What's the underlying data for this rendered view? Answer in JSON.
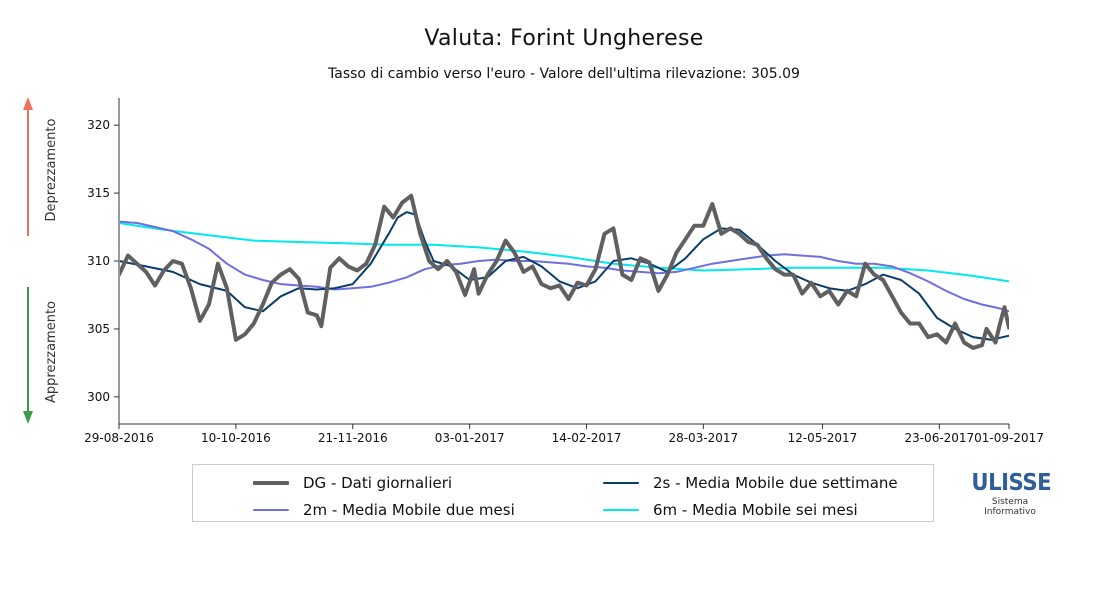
{
  "chart_data": {
    "type": "line",
    "title": "Valuta: Forint Ungherese",
    "subtitle": "Tasso di cambio verso l'euro - Valore dell'ultima rilevazione: 305.09",
    "y_ticks": [
      300,
      305,
      310,
      315,
      320
    ],
    "ylim": [
      298,
      322
    ],
    "x_ticks": [
      "29-08-2016",
      "10-10-2016",
      "21-11-2016",
      "03-01-2017",
      "14-02-2017",
      "28-03-2017",
      "12-05-2017",
      "23-06-2017",
      "01-09-2017"
    ],
    "side_labels": {
      "up": "Deprezzamento",
      "down": "Apprezzamento"
    },
    "colors": {
      "up_arrow": "#f07060",
      "down_arrow": "#3a9a4a"
    },
    "series": [
      {
        "key": "dg",
        "name": "DG - Dati giornalieri",
        "color": "#606060",
        "width": 4,
        "points": [
          [
            0,
            309.0
          ],
          [
            2,
            310.4
          ],
          [
            4,
            309.8
          ],
          [
            6,
            309.2
          ],
          [
            8,
            308.2
          ],
          [
            10,
            309.3
          ],
          [
            12,
            310.0
          ],
          [
            14,
            309.8
          ],
          [
            16,
            308.0
          ],
          [
            18,
            305.6
          ],
          [
            20,
            306.8
          ],
          [
            22,
            309.8
          ],
          [
            24,
            308.0
          ],
          [
            26,
            304.2
          ],
          [
            28,
            304.6
          ],
          [
            30,
            305.4
          ],
          [
            32,
            306.8
          ],
          [
            34,
            308.4
          ],
          [
            36,
            309.0
          ],
          [
            38,
            309.4
          ],
          [
            40,
            308.7
          ],
          [
            42,
            306.2
          ],
          [
            44,
            306.0
          ],
          [
            45,
            305.2
          ],
          [
            47,
            309.5
          ],
          [
            49,
            310.2
          ],
          [
            51,
            309.6
          ],
          [
            53,
            309.3
          ],
          [
            55,
            309.8
          ],
          [
            57,
            311.2
          ],
          [
            59,
            314.0
          ],
          [
            61,
            313.2
          ],
          [
            63,
            314.3
          ],
          [
            65,
            314.8
          ],
          [
            67,
            312.0
          ],
          [
            69,
            310.0
          ],
          [
            71,
            309.4
          ],
          [
            73,
            310.0
          ],
          [
            75,
            309.2
          ],
          [
            77,
            307.5
          ],
          [
            79,
            309.4
          ],
          [
            80,
            307.6
          ],
          [
            82,
            309.0
          ],
          [
            84,
            310.0
          ],
          [
            86,
            311.5
          ],
          [
            88,
            310.6
          ],
          [
            90,
            309.2
          ],
          [
            92,
            309.6
          ],
          [
            94,
            308.3
          ],
          [
            96,
            308.0
          ],
          [
            98,
            308.2
          ],
          [
            100,
            307.2
          ],
          [
            102,
            308.4
          ],
          [
            104,
            308.2
          ],
          [
            106,
            309.4
          ],
          [
            108,
            312.0
          ],
          [
            110,
            312.4
          ],
          [
            112,
            309.0
          ],
          [
            114,
            308.6
          ],
          [
            116,
            310.2
          ],
          [
            118,
            309.9
          ],
          [
            120,
            307.8
          ],
          [
            122,
            309.0
          ],
          [
            124,
            310.6
          ],
          [
            126,
            311.6
          ],
          [
            128,
            312.6
          ],
          [
            130,
            312.6
          ],
          [
            132,
            314.2
          ],
          [
            134,
            312.0
          ],
          [
            136,
            312.4
          ],
          [
            138,
            312.0
          ],
          [
            140,
            311.4
          ],
          [
            142,
            311.2
          ],
          [
            144,
            310.2
          ],
          [
            146,
            309.4
          ],
          [
            148,
            309.0
          ],
          [
            150,
            309.0
          ],
          [
            152,
            307.6
          ],
          [
            154,
            308.4
          ],
          [
            156,
            307.4
          ],
          [
            158,
            307.8
          ],
          [
            160,
            306.8
          ],
          [
            162,
            307.8
          ],
          [
            164,
            307.4
          ],
          [
            166,
            309.8
          ],
          [
            168,
            309.0
          ],
          [
            170,
            308.6
          ],
          [
            172,
            307.4
          ],
          [
            174,
            306.2
          ],
          [
            176,
            305.4
          ],
          [
            178,
            305.4
          ],
          [
            180,
            304.4
          ],
          [
            182,
            304.6
          ],
          [
            184,
            304.0
          ],
          [
            186,
            305.4
          ],
          [
            188,
            304.0
          ],
          [
            190,
            303.6
          ],
          [
            192,
            303.8
          ],
          [
            193,
            305.0
          ],
          [
            195,
            304.0
          ],
          [
            196,
            305.4
          ],
          [
            197,
            306.6
          ],
          [
            198,
            305.1
          ]
        ]
      },
      {
        "key": "s2",
        "name": "2s - Media Mobile due settimane",
        "color": "#0a3d6b",
        "width": 2,
        "points": [
          [
            0,
            310.0
          ],
          [
            6,
            309.6
          ],
          [
            12,
            309.2
          ],
          [
            18,
            308.3
          ],
          [
            24,
            307.8
          ],
          [
            28,
            306.6
          ],
          [
            32,
            306.3
          ],
          [
            36,
            307.4
          ],
          [
            40,
            308.0
          ],
          [
            44,
            307.9
          ],
          [
            48,
            308.0
          ],
          [
            52,
            308.3
          ],
          [
            56,
            309.8
          ],
          [
            60,
            312.0
          ],
          [
            62,
            313.2
          ],
          [
            64,
            313.6
          ],
          [
            66,
            313.4
          ],
          [
            68,
            311.5
          ],
          [
            70,
            310.0
          ],
          [
            74,
            309.6
          ],
          [
            78,
            308.6
          ],
          [
            82,
            308.8
          ],
          [
            86,
            310.0
          ],
          [
            90,
            310.3
          ],
          [
            94,
            309.6
          ],
          [
            98,
            308.5
          ],
          [
            102,
            308.0
          ],
          [
            106,
            308.5
          ],
          [
            110,
            310.0
          ],
          [
            114,
            310.2
          ],
          [
            118,
            309.8
          ],
          [
            122,
            309.2
          ],
          [
            126,
            310.2
          ],
          [
            130,
            311.6
          ],
          [
            134,
            312.4
          ],
          [
            138,
            312.3
          ],
          [
            142,
            311.2
          ],
          [
            146,
            310.0
          ],
          [
            150,
            309.0
          ],
          [
            154,
            308.4
          ],
          [
            158,
            308.0
          ],
          [
            162,
            307.8
          ],
          [
            166,
            308.3
          ],
          [
            170,
            309.0
          ],
          [
            174,
            308.6
          ],
          [
            178,
            307.6
          ],
          [
            182,
            305.8
          ],
          [
            186,
            305.0
          ],
          [
            190,
            304.4
          ],
          [
            194,
            304.2
          ],
          [
            198,
            304.5
          ]
        ]
      },
      {
        "key": "m2",
        "name": "2m - Media Mobile due mesi",
        "color": "#6f6fe0",
        "width": 2,
        "points": [
          [
            0,
            312.9
          ],
          [
            4,
            312.8
          ],
          [
            8,
            312.5
          ],
          [
            12,
            312.2
          ],
          [
            16,
            311.6
          ],
          [
            20,
            310.9
          ],
          [
            24,
            309.8
          ],
          [
            28,
            309.0
          ],
          [
            32,
            308.6
          ],
          [
            36,
            308.3
          ],
          [
            40,
            308.2
          ],
          [
            44,
            308.1
          ],
          [
            48,
            307.9
          ],
          [
            52,
            308.0
          ],
          [
            56,
            308.1
          ],
          [
            60,
            308.4
          ],
          [
            64,
            308.8
          ],
          [
            68,
            309.4
          ],
          [
            72,
            309.7
          ],
          [
            76,
            309.8
          ],
          [
            80,
            310.0
          ],
          [
            84,
            310.1
          ],
          [
            88,
            310.0
          ],
          [
            92,
            310.0
          ],
          [
            96,
            309.9
          ],
          [
            100,
            309.8
          ],
          [
            104,
            309.6
          ],
          [
            108,
            309.5
          ],
          [
            112,
            309.3
          ],
          [
            116,
            309.2
          ],
          [
            120,
            309.1
          ],
          [
            124,
            309.2
          ],
          [
            128,
            309.5
          ],
          [
            132,
            309.8
          ],
          [
            136,
            310.0
          ],
          [
            140,
            310.2
          ],
          [
            144,
            310.4
          ],
          [
            148,
            310.5
          ],
          [
            152,
            310.4
          ],
          [
            156,
            310.3
          ],
          [
            160,
            310.0
          ],
          [
            164,
            309.8
          ],
          [
            168,
            309.8
          ],
          [
            172,
            309.6
          ],
          [
            176,
            309.1
          ],
          [
            180,
            308.5
          ],
          [
            184,
            307.8
          ],
          [
            188,
            307.2
          ],
          [
            192,
            306.8
          ],
          [
            196,
            306.5
          ],
          [
            198,
            306.3
          ]
        ]
      },
      {
        "key": "m6",
        "name": "6m - Media Mobile sei mesi",
        "color": "#00e8f2",
        "width": 2,
        "points": [
          [
            0,
            312.8
          ],
          [
            10,
            312.3
          ],
          [
            20,
            311.9
          ],
          [
            30,
            311.5
          ],
          [
            40,
            311.4
          ],
          [
            50,
            311.3
          ],
          [
            60,
            311.2
          ],
          [
            70,
            311.2
          ],
          [
            80,
            311.0
          ],
          [
            90,
            310.7
          ],
          [
            100,
            310.3
          ],
          [
            110,
            309.8
          ],
          [
            120,
            309.5
          ],
          [
            130,
            309.3
          ],
          [
            140,
            309.4
          ],
          [
            150,
            309.5
          ],
          [
            160,
            309.5
          ],
          [
            170,
            309.5
          ],
          [
            180,
            309.3
          ],
          [
            190,
            308.9
          ],
          [
            198,
            308.5
          ]
        ]
      }
    ]
  },
  "legend": {
    "dg": "DG - Dati giornalieri",
    "s2": "2s - Media Mobile due settimane",
    "m2": "2m - Media Mobile due mesi",
    "m6": "6m - Media Mobile sei mesi"
  },
  "logo": {
    "title": "ULISSE",
    "subtitle_1": "Sistema",
    "subtitle_2": "Informativo",
    "color": "#2f5f98"
  }
}
